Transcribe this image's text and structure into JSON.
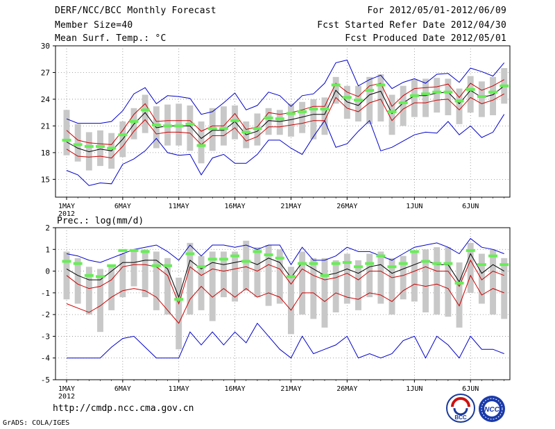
{
  "header": {
    "title": "DERF/NCC/BCC Monthly Forecast",
    "member_size": "Member Size=40",
    "variable": "Mean Surf. Temp.: °C",
    "forecast_period": "For 2012/05/01-2012/06/09",
    "refer_date": "Fcst Started Refer Date 2012/04/30",
    "produced_date": "Fcst Produced Date 2012/05/01"
  },
  "footer": {
    "url": "http://cmdp.ncc.cma.gov.cn",
    "grads_credit": "GrADS: COLA/IGES",
    "logo_bcc_text": "BCC",
    "logo_ncc_text": "NCC"
  },
  "colors": {
    "envelope": "#0000cc",
    "band": "#cc0000",
    "mean": "#000000",
    "box": "#c8c8c8",
    "marker": "#66ee55",
    "grid": "#888888"
  },
  "chart_data": [
    {
      "type": "line",
      "id": "temperature",
      "title": "Mean Surf. Temp.: °C",
      "ylim": [
        13,
        30
      ],
      "y_ticks": [
        15,
        18,
        21,
        24,
        27,
        30
      ],
      "x_tick_labels": [
        "1MAY",
        "6MAY",
        "11MAY",
        "16MAY",
        "21MAY",
        "26MAY",
        "1JUN",
        "6JUN"
      ],
      "x_tick_days": [
        1,
        6,
        11,
        16,
        21,
        26,
        32,
        37
      ],
      "year_label": "2012",
      "days": 40,
      "series": [
        {
          "name": "max",
          "values": [
            16,
            15.5,
            14.3,
            14.6,
            14.5,
            16.7,
            17.3,
            18.2,
            19.6,
            18,
            17.7,
            17.8,
            15.5,
            17.4,
            17.8,
            16.8,
            16.8,
            17.8,
            19.4,
            19.4,
            18.5,
            17.8,
            19.8,
            21.6,
            18.6,
            19,
            20.4,
            21.6,
            18.2,
            18.6,
            19.3,
            20,
            20.3,
            20.2,
            21.5,
            20,
            21,
            19.7,
            20.3,
            22.3
          ]
        },
        {
          "name": "min",
          "values": [
            21.8,
            21.3,
            21.3,
            21.3,
            21.5,
            22.7,
            24.6,
            25.3,
            23.5,
            24.4,
            24.3,
            24.1,
            22.3,
            22.6,
            23.6,
            24.7,
            22.8,
            23.3,
            24.8,
            24.4,
            23.2,
            24.4,
            24.6,
            25.8,
            28.1,
            28.4,
            25.5,
            26.2,
            26.7,
            25.2,
            25.9,
            26.3,
            25.8,
            26.8,
            26.9,
            25.9,
            27.5,
            27.1,
            26.6,
            28.1
          ]
        },
        {
          "name": "upper_band",
          "values": [
            20.5,
            19.4,
            19.1,
            19,
            18.9,
            20.5,
            22.3,
            23.5,
            21.5,
            21.6,
            21.6,
            21.6,
            20.4,
            21,
            21,
            22.4,
            20.6,
            20.9,
            22.5,
            22.3,
            22.5,
            22.8,
            23.2,
            23.2,
            25.8,
            24.8,
            24.3,
            25.5,
            25.8,
            23.2,
            24.4,
            25.2,
            25.3,
            25.4,
            25.7,
            24.2,
            25.8,
            25,
            25.5,
            26.2
          ]
        },
        {
          "name": "mean",
          "values": [
            19.2,
            18.5,
            18.1,
            18.4,
            18.2,
            19.5,
            21.2,
            22.5,
            20.8,
            21,
            21,
            21,
            19.6,
            20.5,
            20.5,
            21.5,
            20,
            20.4,
            21.6,
            21.5,
            21.7,
            22,
            22.3,
            22.3,
            25,
            23.7,
            23.3,
            24.5,
            24.9,
            22.4,
            23.6,
            24.4,
            24.4,
            24.7,
            24.8,
            23.5,
            25,
            24.2,
            24.5,
            25.5
          ]
        },
        {
          "name": "lower_band",
          "values": [
            18.4,
            17.6,
            17.5,
            17.6,
            17.4,
            18.7,
            20.4,
            21.7,
            20.1,
            20.3,
            20.3,
            20.2,
            18.9,
            19.9,
            19.9,
            20.8,
            19.3,
            19.8,
            20.9,
            20.9,
            21.1,
            21.3,
            21.6,
            21.6,
            24.2,
            23,
            22.6,
            23.6,
            24,
            21.6,
            22.9,
            23.6,
            23.6,
            23.9,
            24,
            22.8,
            24.2,
            23.5,
            23.9,
            24.6
          ]
        },
        {
          "name": "box_top",
          "values": [
            22.8,
            21.2,
            20.3,
            20.5,
            20.2,
            21.5,
            23,
            24.5,
            23.2,
            23.4,
            23.5,
            23.3,
            21.5,
            23,
            23.2,
            23.3,
            21.5,
            22.4,
            23,
            22.8,
            23.5,
            23.7,
            24,
            24.2,
            26.5,
            25.5,
            25.5,
            26.5,
            26.8,
            24.5,
            25.5,
            26.2,
            26.3,
            26.4,
            26.3,
            25.2,
            26.6,
            26,
            26.5,
            27.5
          ]
        },
        {
          "name": "box_bottom",
          "values": [
            17.7,
            17,
            16,
            16.5,
            16.2,
            17.5,
            19.5,
            20.2,
            18.5,
            18.8,
            18.8,
            18.2,
            16.8,
            18.2,
            18.8,
            19.5,
            18.5,
            18.8,
            20,
            20,
            19.8,
            20.2,
            19.5,
            20,
            23.5,
            21.8,
            21.5,
            21.2,
            21.5,
            20,
            21,
            22,
            22,
            22.5,
            22.2,
            21.2,
            22.5,
            22,
            22.2,
            23.5
          ]
        },
        {
          "name": "observed",
          "values": [
            19.4,
            18.9,
            18.7,
            18.7,
            18.5,
            20,
            21.5,
            22.8,
            21.1,
            21,
            21,
            21.2,
            18.8,
            20.7,
            20.7,
            21.6,
            20.3,
            20.7,
            21.9,
            21.8,
            22.4,
            22.6,
            22.9,
            22.9,
            25.6,
            24.2,
            23.9,
            25,
            25.6,
            22.6,
            23.6,
            24.4,
            24.6,
            24.8,
            24.8,
            23.8,
            25.1,
            24.3,
            24.8,
            25.5
          ]
        }
      ]
    },
    {
      "type": "line",
      "id": "precipitation",
      "title": "Prec.: log(mm/d)",
      "ylim": [
        -5,
        2
      ],
      "y_ticks": [
        -5,
        -4,
        -3,
        -2,
        -1,
        0,
        1,
        2
      ],
      "x_tick_labels": [
        "1MAY",
        "6MAY",
        "11MAY",
        "16MAY",
        "21MAY",
        "26MAY",
        "1JUN",
        "6JUN"
      ],
      "x_tick_days": [
        1,
        6,
        11,
        16,
        21,
        26,
        32,
        37
      ],
      "year_label": "2012",
      "days": 40,
      "series": [
        {
          "name": "min",
          "values": [
            -4,
            -4,
            -4,
            -4,
            -3.5,
            -3.1,
            -3,
            -3.5,
            -4,
            -4,
            -4,
            -2.8,
            -3.4,
            -2.8,
            -3.4,
            -2.8,
            -3.3,
            -2.4,
            -3,
            -3.6,
            -4,
            -3,
            -3.8,
            -3.6,
            -3.4,
            -3,
            -4,
            -3.8,
            -4,
            -3.8,
            -3.2,
            -3,
            -4,
            -3,
            -3.4,
            -4,
            -3,
            -3.6,
            -3.6,
            -3.8
          ]
        },
        {
          "name": "max",
          "values": [
            0.8,
            0.7,
            0.5,
            0.4,
            0.6,
            0.8,
            1,
            1.1,
            1.2,
            0.9,
            0.5,
            1.2,
            0.7,
            1.2,
            1.2,
            1.1,
            1.2,
            1,
            1.2,
            1.2,
            0.3,
            1.1,
            0.5,
            0.5,
            0.7,
            1.1,
            0.9,
            0.9,
            0.7,
            0.5,
            0.8,
            1.1,
            1.2,
            1.3,
            1.1,
            0.8,
            1.5,
            1.1,
            1,
            0.8
          ]
        },
        {
          "name": "lower_band",
          "values": [
            -1.5,
            -1.7,
            -1.9,
            -1.6,
            -1.2,
            -0.9,
            -0.8,
            -0.9,
            -1.2,
            -1.8,
            -2.4,
            -1.3,
            -0.7,
            -1.2,
            -0.8,
            -1.2,
            -0.8,
            -1.2,
            -1,
            -1.2,
            -1.8,
            -1,
            -1,
            -1.4,
            -1,
            -1.2,
            -1.3,
            -1,
            -1.1,
            -1.4,
            -0.9,
            -0.6,
            -0.7,
            -0.6,
            -0.8,
            -1.6,
            -0.2,
            -1.1,
            -0.8,
            -1
          ]
        },
        {
          "name": "mean",
          "values": [
            0.1,
            -0.2,
            -0.4,
            -0.4,
            0,
            0.4,
            0.4,
            0.5,
            0.5,
            0.1,
            -1.2,
            0.5,
            0.1,
            0.4,
            0.3,
            0.4,
            0.5,
            0.3,
            0.6,
            0.4,
            -0.3,
            0.4,
            0.1,
            -0.2,
            -0.1,
            0.1,
            -0.1,
            0.2,
            0.3,
            -0.1,
            0.1,
            0.3,
            0.5,
            0.3,
            0.3,
            -0.5,
            0.8,
            -0.1,
            0.3,
            0
          ]
        },
        {
          "name": "upper_band",
          "values": [
            -0.2,
            -0.6,
            -0.8,
            -0.7,
            -0.4,
            0.2,
            0.3,
            0.3,
            0.2,
            -0.2,
            -1.5,
            0.2,
            -0.2,
            0.1,
            0,
            0.1,
            0.2,
            0,
            0.3,
            0.1,
            -0.6,
            0.1,
            -0.2,
            -0.4,
            -0.3,
            -0.1,
            -0.4,
            0,
            0,
            -0.3,
            -0.2,
            0,
            0.2,
            0,
            0,
            -0.7,
            0.5,
            -0.4,
            0,
            -0.2
          ]
        },
        {
          "name": "box_top",
          "values": [
            0.9,
            0.6,
            0.2,
            0.1,
            0.3,
            0.8,
            0.9,
            1,
            0.9,
            0.6,
            -0.3,
            1.3,
            0.7,
            0.9,
            0.9,
            0.9,
            1.4,
            1.1,
            1.2,
            1,
            0.2,
            0.9,
            0.6,
            0.6,
            0.5,
            0.8,
            0.5,
            0.8,
            0.9,
            0.6,
            0.7,
            0.9,
            1,
            1.1,
            1.1,
            0.4,
            1.3,
            0.8,
            1,
            0.6
          ]
        },
        {
          "name": "box_bottom",
          "values": [
            -1.3,
            -1.5,
            -2,
            -2.8,
            -1.8,
            -1.2,
            -0.7,
            -1.2,
            -1.8,
            -2,
            -3.6,
            -2,
            -1.8,
            -2.3,
            -1.2,
            -1.4,
            -0.9,
            -1.2,
            -1.6,
            -1.5,
            -2.9,
            -2,
            -2.2,
            -2.6,
            -1.9,
            -1.5,
            -1.8,
            -1.2,
            -1.5,
            -2,
            -1.3,
            -1.4,
            -1.9,
            -2,
            -2.1,
            -2.6,
            -1,
            -1.5,
            -2,
            -2.2
          ]
        },
        {
          "name": "observed",
          "values": [
            0.45,
            0.35,
            -0.2,
            -0.25,
            0.25,
            0.95,
            0.95,
            0.9,
            0.25,
            0.25,
            -1.3,
            0.8,
            0.2,
            0.55,
            0.55,
            0.7,
            0.45,
            0.9,
            0.75,
            0.6,
            -0.25,
            0.35,
            0.35,
            -0.2,
            0.35,
            0.4,
            0.2,
            0.35,
            0.7,
            0.2,
            0.35,
            0.9,
            0.45,
            0.35,
            0.35,
            -0.55,
            0.95,
            0.3,
            0.7,
            0.3
          ]
        }
      ]
    }
  ]
}
